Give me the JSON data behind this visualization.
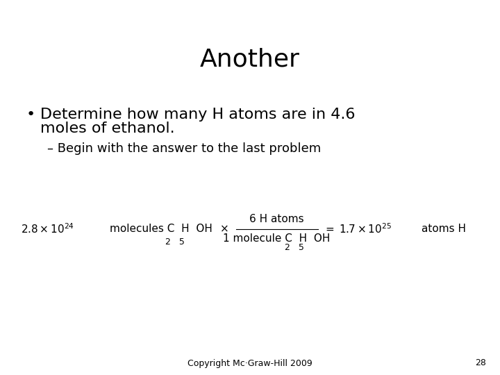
{
  "title": "Another",
  "bullet1_line1": "Determine how many H atoms are in 4.6",
  "bullet1_line2": "moles of ethanol.",
  "sub_bullet1": "– Begin with the answer to the last problem",
  "copyright": "Copyright Mc·Graw-Hill 2009",
  "page_num": "28",
  "bg_color": "#ffffff",
  "text_color": "#000000",
  "title_fontsize": 26,
  "bullet_fontsize": 16,
  "sub_bullet_fontsize": 13,
  "eq_fontsize": 11,
  "footer_fontsize": 9
}
